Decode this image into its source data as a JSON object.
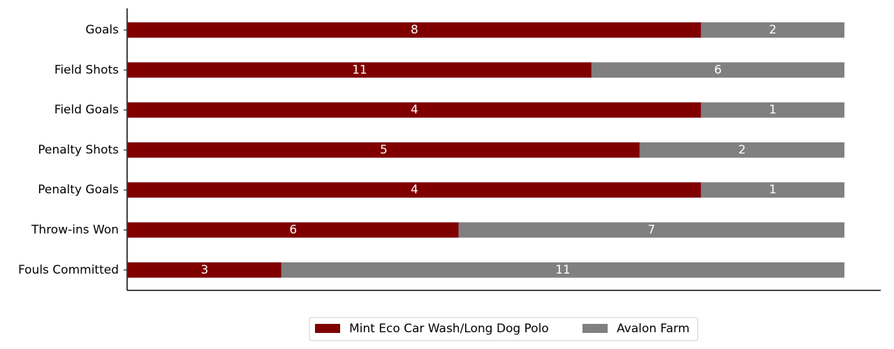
{
  "chart_data": {
    "type": "bar",
    "orientation": "horizontal",
    "stacked": true,
    "normalized": true,
    "categories": [
      "Goals",
      "Field Shots",
      "Field Goals",
      "Penalty Shots",
      "Penalty Goals",
      "Throw-ins Won",
      "Fouls Committed"
    ],
    "series": [
      {
        "name": "Mint Eco Car Wash/Long Dog Polo",
        "color": "#800000",
        "values": [
          8,
          11,
          4,
          5,
          4,
          6,
          3
        ]
      },
      {
        "name": "Avalon Farm",
        "color": "#808080",
        "values": [
          2,
          6,
          1,
          2,
          1,
          7,
          11
        ]
      }
    ],
    "title": "",
    "xlabel": "",
    "ylabel": "",
    "grid": false,
    "legend_position": "bottom-center"
  }
}
